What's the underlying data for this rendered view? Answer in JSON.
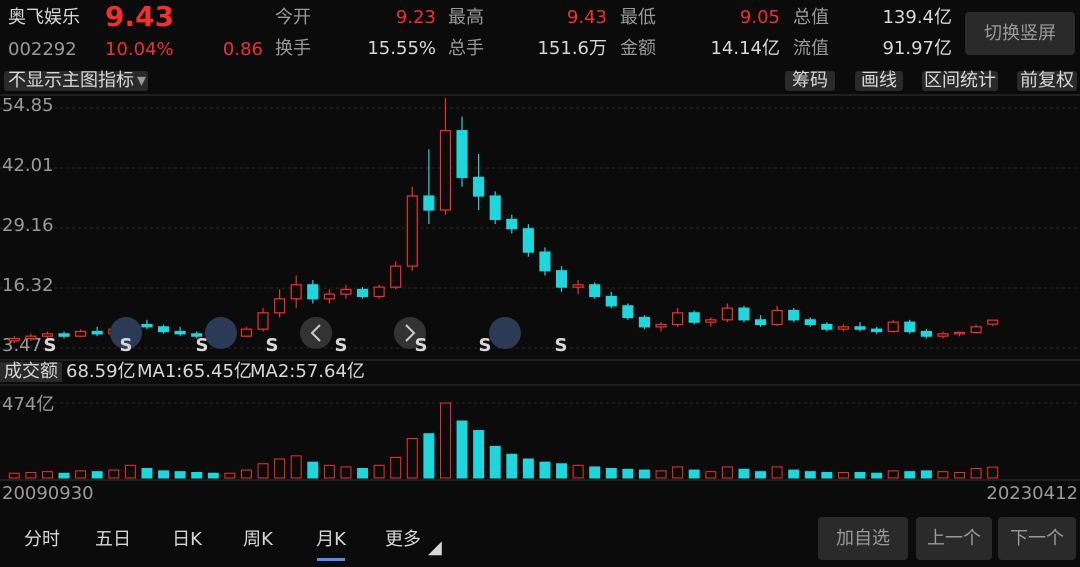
{
  "header": {
    "name": "奥飞娱乐",
    "price": "9.43",
    "code": "002292",
    "change_pct": "10.04%",
    "change": "0.86",
    "stats": [
      [
        "今开",
        "9.23"
      ],
      [
        "最高",
        "9.43"
      ],
      [
        "最低",
        "9.05"
      ],
      [
        "总值",
        "139.4亿"
      ],
      [
        "换手",
        "15.55%"
      ],
      [
        "总手",
        "151.6万"
      ],
      [
        "金额",
        "14.14亿"
      ],
      [
        "流值",
        "91.97亿"
      ]
    ],
    "button": "切换竖屏"
  },
  "toolbar": {
    "indicator": "不显示主图指标",
    "buttons": [
      "筹码",
      "画线",
      "区间统计",
      "前复权"
    ]
  },
  "kline": {
    "ylim": [
      3.47,
      54.85
    ],
    "yticks": [
      3.47,
      16.32,
      29.16,
      42.01,
      54.85
    ],
    "open": [
      5,
      5.5,
      6,
      6.5,
      6,
      7,
      6.5,
      7.5,
      8.5,
      8,
      7,
      6.5,
      6,
      5.5,
      6,
      7.5,
      11,
      14,
      17,
      14,
      15,
      16,
      14.5,
      16.5,
      21,
      36,
      33,
      50,
      40,
      36,
      31,
      29,
      24,
      20,
      16.5,
      17,
      14.5,
      12.5,
      10,
      8,
      8.5,
      11,
      9,
      9.5,
      12,
      9.5,
      8.5,
      11.5,
      9.5,
      8.5,
      7.5,
      8,
      7.5,
      7,
      9,
      7,
      6,
      6.5,
      6.8,
      8.57
    ],
    "high": [
      6,
      6.5,
      7,
      7,
      7.5,
      8,
      8,
      9,
      9.5,
      8.5,
      8,
      7,
      6.5,
      6.5,
      8,
      12,
      16,
      19,
      18,
      16,
      17,
      16.5,
      17,
      22,
      38,
      46,
      57,
      53,
      45,
      37,
      32,
      30,
      25,
      21,
      18,
      17.5,
      15.5,
      13,
      10.5,
      9,
      12,
      11.5,
      10,
      13,
      12.5,
      10.5,
      12.5,
      12,
      10,
      9,
      8.5,
      9,
      8,
      9.5,
      9.5,
      7.5,
      7,
      7,
      8.5,
      9.43
    ],
    "low": [
      4.5,
      5,
      5.5,
      5.5,
      5.8,
      6,
      6.2,
      7,
      7.5,
      6.5,
      6,
      5.5,
      5,
      5,
      5.8,
      7,
      10,
      12,
      13,
      13,
      14,
      14,
      14,
      16,
      20,
      30,
      32,
      38,
      33,
      30,
      28,
      23,
      19,
      15.5,
      15,
      14,
      12,
      9.5,
      7.5,
      7,
      8,
      8.5,
      8,
      9,
      9,
      8,
      8.2,
      9,
      8,
      7,
      7,
      7,
      6.5,
      6.8,
      6.5,
      5.5,
      5.5,
      6,
      6.5,
      8.2
    ],
    "close": [
      5.5,
      6,
      6.5,
      6,
      7,
      6.5,
      7.5,
      8.5,
      8,
      7,
      6.5,
      6,
      5.5,
      6,
      7.5,
      11,
      14,
      17,
      14,
      15,
      16,
      14.5,
      16.5,
      21,
      36,
      33,
      50,
      40,
      36,
      31,
      29,
      24,
      20,
      16.5,
      17,
      14.5,
      12.5,
      10,
      8,
      8.5,
      11,
      9,
      9.5,
      12,
      9.5,
      8.5,
      11.5,
      9.5,
      8.5,
      7.5,
      8,
      7.5,
      7,
      9,
      7,
      6,
      6.5,
      6.8,
      8,
      9.43
    ],
    "volume": [
      30,
      35,
      40,
      30,
      45,
      40,
      50,
      80,
      60,
      45,
      40,
      35,
      30,
      30,
      50,
      90,
      120,
      140,
      100,
      80,
      70,
      60,
      80,
      130,
      250,
      280,
      474,
      360,
      300,
      200,
      150,
      120,
      100,
      90,
      80,
      70,
      60,
      55,
      50,
      45,
      70,
      50,
      40,
      70,
      55,
      40,
      70,
      50,
      40,
      35,
      35,
      35,
      30,
      45,
      40,
      45,
      40,
      35,
      60,
      68.59
    ],
    "up_color": "#f0302e",
    "down_color": "#1fd6dc",
    "vol_label": "成交额",
    "vol_value": "68.59亿",
    "ma1": "MA1:65.45亿",
    "ma2": "MA2:57.64亿",
    "vol_ylim": [
      0,
      474
    ],
    "vol_yticks": [
      {
        "value": 474,
        "label": "474亿"
      }
    ],
    "start_date": "20090930",
    "end_date": "20230412",
    "signal": "S"
  },
  "footer": {
    "tabs": [
      "分时",
      "五日",
      "日K",
      "周K",
      "月K",
      "更多"
    ],
    "buttons": [
      "加自选",
      "上一个",
      "下一个"
    ]
  }
}
